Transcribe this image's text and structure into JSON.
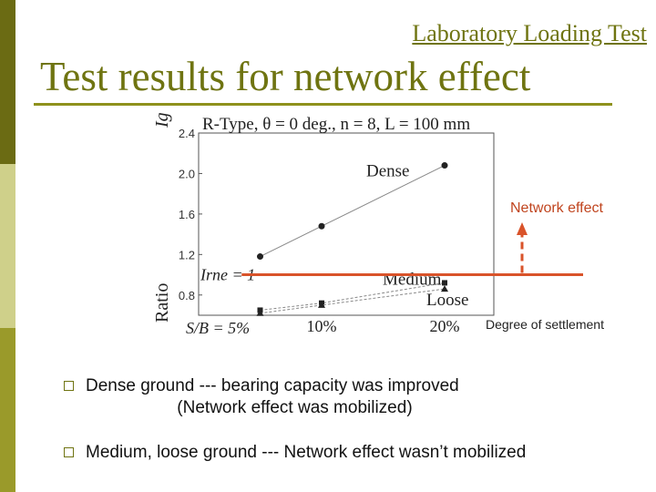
{
  "header": {
    "section": "Laboratory Loading Test",
    "title": "Test results for network effect"
  },
  "chart_data": {
    "type": "line",
    "title": "R-Type, θ = 0 deg., n = 8, L = 100 mm",
    "ylabel_top": "Ig",
    "ylabel_side": "Ratio",
    "xlabel": "S/B = 5%",
    "xticks": [
      "10%",
      "20%"
    ],
    "yticks": [
      "2.4",
      "2.0",
      "1.6",
      "1.2",
      "0.8"
    ],
    "ylim": [
      0.6,
      2.4
    ],
    "series": [
      {
        "name": "Dense",
        "x": [
          5,
          10,
          20
        ],
        "values": [
          1.18,
          1.48,
          2.08
        ]
      },
      {
        "name": "Medium",
        "x": [
          5,
          10,
          20
        ],
        "values": [
          0.65,
          0.72,
          0.92
        ]
      },
      {
        "name": "Loose",
        "x": [
          5,
          10,
          20
        ],
        "values": [
          0.62,
          0.7,
          0.86
        ]
      }
    ],
    "reference_line": {
      "label": "Irne = 1",
      "value": 1.0
    },
    "annotations": {
      "network_effect": "Network effect",
      "degree_of_settlement": "Degree of settlement"
    },
    "colors": {
      "reference": "#d9532a",
      "series": "#222222",
      "guide": "#9a9a9a"
    }
  },
  "bullets": [
    {
      "text": "Dense ground --- bearing capacity was improved\n                   (Network effect was mobilized)"
    },
    {
      "text": "Medium, loose ground --- Network effect wasn’t mobilized"
    }
  ]
}
